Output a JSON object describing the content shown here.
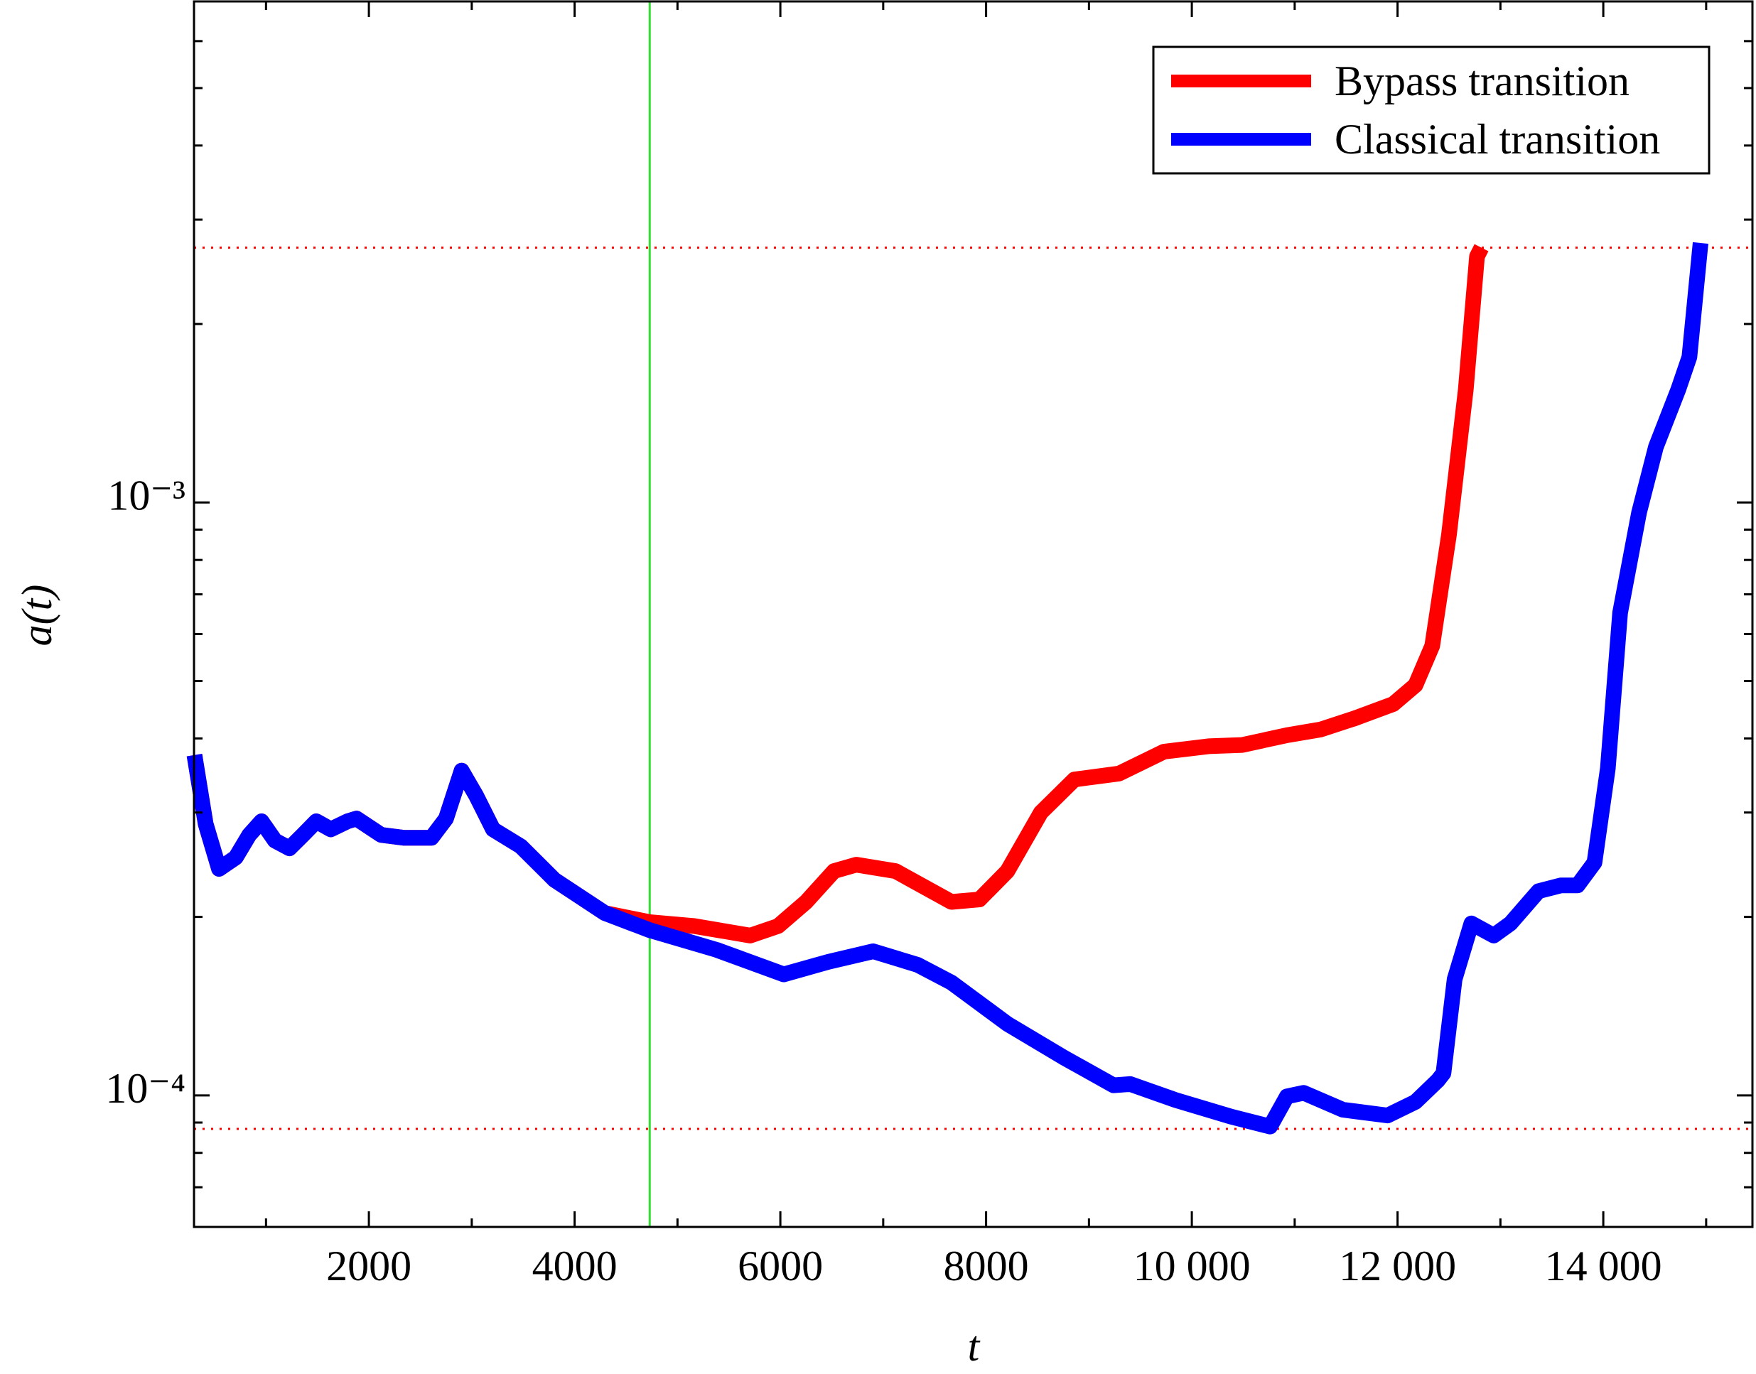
{
  "chart_data": {
    "type": "line",
    "xlabel": "t",
    "ylabel": "a(t)",
    "xlim": [
      300,
      15450
    ],
    "ylim": [
      6e-05,
      0.007
    ],
    "ylog": true,
    "xticks": [
      2000,
      4000,
      6000,
      8000,
      {
        "value": 10000,
        "label": "10 000"
      },
      {
        "value": 12000,
        "label": "12 000"
      },
      {
        "value": 14000,
        "label": "14 000"
      }
    ],
    "xminorticks": [
      1000,
      3000,
      5000,
      7000,
      9000,
      11000,
      13000,
      15000
    ],
    "yticks": [
      {
        "value": 0.0001,
        "label": "10⁻⁴"
      },
      {
        "value": 0.001,
        "label": "10⁻³"
      }
    ],
    "yminorticks": [
      7e-05,
      8e-05,
      9e-05,
      0.0002,
      0.0003,
      0.0004,
      0.0005,
      0.0006,
      0.0007,
      0.0008,
      0.0009,
      0.002,
      0.003,
      0.004,
      0.005,
      0.006
    ],
    "hlines": [
      0.00269,
      8.78e-05
    ],
    "hline_color": "#ff0000",
    "vline": 4730,
    "vline_color": "#33dd33",
    "legend": "upper right",
    "series": [
      {
        "name": "Bypass transition",
        "color": "#ff0000",
        "x": [
          304,
          413,
          543,
          706,
          837,
          956,
          1087,
          1228,
          1359,
          1489,
          1630,
          1793,
          1880,
          2120,
          2337,
          2609,
          2750,
          2902,
          3044,
          3207,
          3478,
          3804,
          4294,
          4728,
          5163,
          5707,
          5978,
          6250,
          6522,
          6739,
          7120,
          7663,
          7935,
          8207,
          8533,
          8859,
          9294,
          9729,
          10163,
          10489,
          10924,
          11250,
          11576,
          11957,
          12174,
          12337,
          12500,
          12663,
          12772,
          12816
        ],
        "values": [
          0.000375,
          0.000287,
          0.000241,
          0.000252,
          0.000275,
          0.00029,
          0.000269,
          0.000261,
          0.000275,
          0.00029,
          0.000281,
          0.00029,
          0.000293,
          0.000275,
          0.000272,
          0.000272,
          0.000293,
          0.000353,
          0.00032,
          0.000281,
          0.000263,
          0.000231,
          0.000203,
          0.000196,
          0.000193,
          0.000186,
          0.000193,
          0.000212,
          0.000239,
          0.000245,
          0.000239,
          0.000212,
          0.000214,
          0.000239,
          0.0003,
          0.000341,
          0.000349,
          0.00038,
          0.000388,
          0.00039,
          0.000405,
          0.000414,
          0.000432,
          0.000457,
          0.000492,
          0.000573,
          0.000883,
          0.00155,
          0.0026,
          0.00269
        ]
      },
      {
        "name": "Classical transition",
        "color": "#0000ff",
        "x": [
          304,
          413,
          543,
          706,
          837,
          956,
          1087,
          1228,
          1359,
          1489,
          1630,
          1793,
          1880,
          2120,
          2337,
          2609,
          2750,
          2902,
          3044,
          3207,
          3478,
          3804,
          4294,
          4728,
          5381,
          6033,
          6468,
          6902,
          7337,
          7663,
          8207,
          8750,
          9239,
          9402,
          9837,
          10381,
          10761,
          10924,
          11087,
          11468,
          11903,
          12174,
          12392,
          12446,
          12555,
          12718,
          12935,
          13098,
          13370,
          13587,
          13750,
          13914,
          14044,
          14164,
          14348,
          14511,
          14729,
          14837,
          14946
        ],
        "values": [
          0.000375,
          0.000287,
          0.000241,
          0.000252,
          0.000275,
          0.00029,
          0.000269,
          0.000261,
          0.000275,
          0.00029,
          0.000281,
          0.00029,
          0.000293,
          0.000275,
          0.000272,
          0.000272,
          0.000293,
          0.000353,
          0.00032,
          0.000281,
          0.000263,
          0.000231,
          0.000203,
          0.00019,
          0.000176,
          0.00016,
          0.000168,
          0.000175,
          0.000166,
          0.000155,
          0.000132,
          0.000116,
          0.000104,
          0.0001045,
          9.83e-05,
          9.21e-05,
          8.86e-05,
          9.96e-05,
          0.000101,
          9.46e-05,
          9.25e-05,
          9.75e-05,
          0.000106,
          0.000109,
          0.000157,
          0.000195,
          0.000186,
          0.000195,
          0.000221,
          0.000226,
          0.000226,
          0.000247,
          0.000356,
          0.000652,
          0.000962,
          0.00124,
          0.00155,
          0.00176,
          0.00274
        ]
      }
    ]
  }
}
